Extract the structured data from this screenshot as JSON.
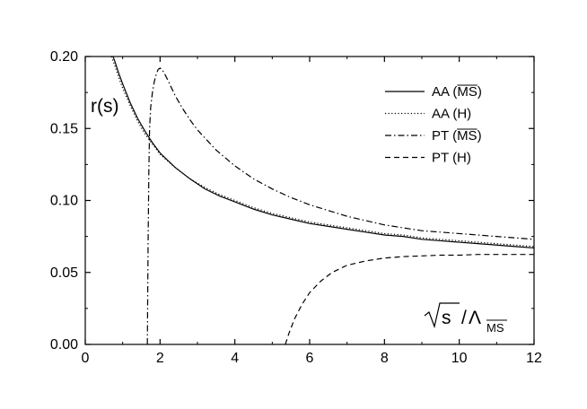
{
  "chart_data": {
    "type": "line",
    "title": "",
    "xlabel": "",
    "ylabel": "",
    "xlim": [
      0,
      12
    ],
    "ylim": [
      0,
      0.2
    ],
    "x_ticks": [
      0,
      2,
      4,
      6,
      8,
      10,
      12
    ],
    "x_tick_labels": [
      "0",
      "2",
      "4",
      "6",
      "8",
      "10",
      "12"
    ],
    "y_ticks": [
      0,
      0.05,
      0.1,
      0.15,
      0.2
    ],
    "y_tick_labels": [
      "0.00",
      "0.05",
      "0.10",
      "0.15",
      "0.20"
    ],
    "grid": false,
    "legend_position": "top-right",
    "annotations": {
      "y_label": "r(s)",
      "x_label_prefix": "s",
      "x_label_lambda": "Λ",
      "x_label_subscript": "MS"
    },
    "series": [
      {
        "name": "AA (MS)",
        "label_main": "AA (",
        "label_over": "MS",
        "label_end": ")",
        "dash": "solid",
        "x": [
          0.7,
          0.8,
          0.9,
          1.0,
          1.2,
          1.4,
          1.6,
          1.8,
          2.0,
          2.4,
          2.8,
          3.2,
          3.6,
          4.0,
          4.5,
          5.0,
          5.5,
          6.0,
          6.5,
          7.0,
          7.5,
          8.0,
          8.5,
          9.0,
          9.5,
          10.0,
          10.5,
          11.0,
          11.5,
          12.0
        ],
        "y": [
          0.203,
          0.196,
          0.188,
          0.181,
          0.168,
          0.157,
          0.148,
          0.14,
          0.133,
          0.123,
          0.115,
          0.108,
          0.103,
          0.099,
          0.094,
          0.09,
          0.087,
          0.084,
          0.082,
          0.08,
          0.078,
          0.076,
          0.075,
          0.073,
          0.072,
          0.071,
          0.07,
          0.069,
          0.068,
          0.067
        ]
      },
      {
        "name": "AA (H)",
        "label_main": "AA (H)",
        "dash": "dotted",
        "x": [
          0.7,
          0.8,
          0.9,
          1.0,
          1.2,
          1.4,
          1.6,
          1.8,
          2.0,
          2.4,
          2.8,
          3.2,
          3.6,
          4.0,
          4.5,
          5.0,
          5.5,
          6.0,
          6.5,
          7.0,
          7.5,
          8.0,
          8.5,
          9.0,
          9.5,
          10.0,
          10.5,
          11.0,
          11.5,
          12.0
        ],
        "y": [
          0.2,
          0.193,
          0.185,
          0.178,
          0.166,
          0.155,
          0.146,
          0.139,
          0.132,
          0.123,
          0.115,
          0.109,
          0.104,
          0.1,
          0.095,
          0.091,
          0.088,
          0.085,
          0.083,
          0.081,
          0.079,
          0.077,
          0.076,
          0.074,
          0.073,
          0.072,
          0.071,
          0.07,
          0.069,
          0.068
        ]
      },
      {
        "name": "PT (MS)",
        "label_main": "PT (",
        "label_over": "MS",
        "label_end": ")",
        "dash": "dashdot",
        "x": [
          1.66,
          1.68,
          1.7,
          1.72,
          1.75,
          1.8,
          1.85,
          1.9,
          1.95,
          2.0,
          2.05,
          2.1,
          2.2,
          2.4,
          2.6,
          2.8,
          3.0,
          3.5,
          4.0,
          4.5,
          5.0,
          5.5,
          6.0,
          6.5,
          7.0,
          7.5,
          8.0,
          8.5,
          9.0,
          9.5,
          10.0,
          10.5,
          11.0,
          11.5,
          12.0
        ],
        "y": [
          0.0,
          0.07,
          0.12,
          0.15,
          0.165,
          0.176,
          0.183,
          0.188,
          0.191,
          0.192,
          0.191,
          0.189,
          0.184,
          0.173,
          0.164,
          0.156,
          0.149,
          0.135,
          0.124,
          0.115,
          0.108,
          0.102,
          0.097,
          0.093,
          0.089,
          0.086,
          0.083,
          0.081,
          0.079,
          0.078,
          0.077,
          0.076,
          0.075,
          0.074,
          0.073
        ]
      },
      {
        "name": "PT (H)",
        "label_main": "PT (H)",
        "dash": "dashed",
        "x": [
          5.35,
          5.45,
          5.6,
          5.8,
          6.0,
          6.3,
          6.6,
          7.0,
          7.5,
          8.0,
          8.5,
          9.0,
          9.5,
          10.0,
          10.5,
          11.0,
          11.5,
          12.0
        ],
        "y": [
          0.0,
          0.008,
          0.018,
          0.028,
          0.036,
          0.044,
          0.05,
          0.055,
          0.058,
          0.06,
          0.061,
          0.0615,
          0.062,
          0.062,
          0.0625,
          0.0625,
          0.0625,
          0.0625
        ]
      }
    ]
  }
}
